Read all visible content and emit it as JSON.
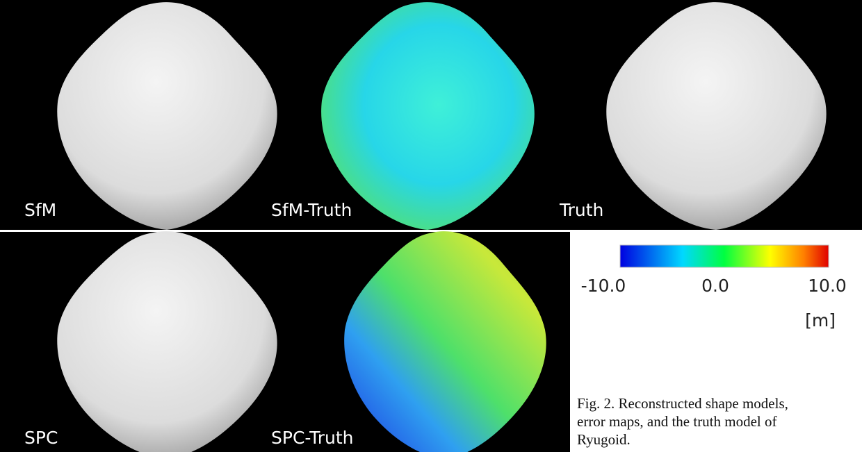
{
  "panels": [
    {
      "label": "SfM"
    },
    {
      "label": "SfM-Truth"
    },
    {
      "label": "Truth"
    },
    {
      "label": "SPC"
    },
    {
      "label": "SPC-Truth"
    }
  ],
  "colorbar": {
    "range": [
      -10,
      10
    ],
    "ticks": [
      {
        "value": -10,
        "label": "-10.0"
      },
      {
        "value": 0,
        "label": "0.0"
      },
      {
        "value": 10,
        "label": "10.0"
      }
    ],
    "unit": "[m]"
  },
  "caption": [
    "Fig. 2. Reconstructed shape models,",
    "error maps, and the truth model of",
    "Ryugoid."
  ]
}
